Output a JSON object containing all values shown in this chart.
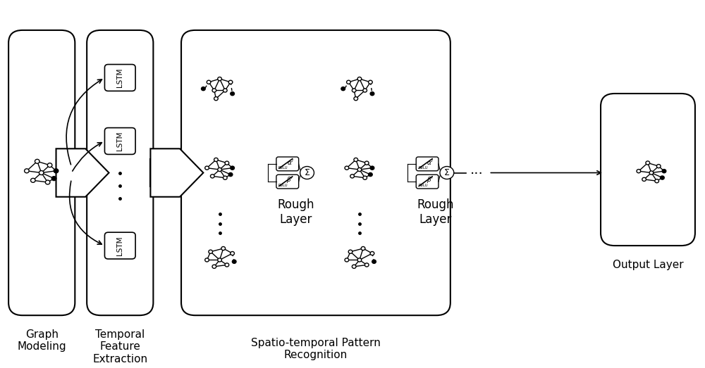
{
  "bg_color": "#ffffff",
  "border_color": "#000000",
  "labels": {
    "graph_modeling": "Graph\nModeling",
    "temporal_feature": "Temporal\nFeature\nExtraction",
    "spatio_temporal": "Spatio-temporal Pattern\nRecognition",
    "rough_layer1": "Rough\nLayer",
    "rough_layer2": "Rough\nLayer",
    "output_layer": "Output Layer"
  },
  "lstm_labels": [
    "LSTM",
    "LSTM",
    "LSTM"
  ],
  "font_size_label": 11,
  "font_size_lstm": 7.5,
  "font_size_rough": 12,
  "font_size_output": 11
}
